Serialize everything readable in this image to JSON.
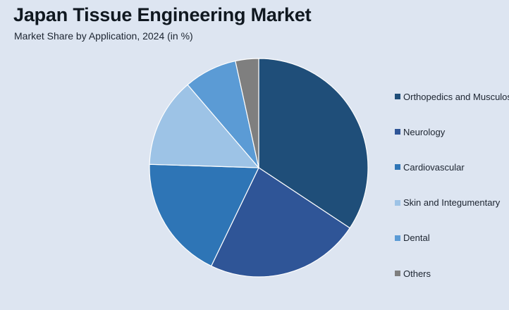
{
  "chart_data": {
    "type": "pie",
    "title": "Japan Tissue Engineering Market",
    "subtitle": "Market Share by Application, 2024 (in %)",
    "legend_position": "right",
    "series": [
      {
        "name": "Orthopedics and Musculoskeletal",
        "value": 35.0,
        "color": "#1f4e79"
      },
      {
        "name": "Neurology",
        "value": 23.3,
        "color": "#2f5597"
      },
      {
        "name": "Cardiovascular",
        "value": 18.7,
        "color": "#2e75b6"
      },
      {
        "name": "Skin and Integumentary",
        "value": 13.5,
        "color": "#9dc3e6"
      },
      {
        "name": "Dental",
        "value": 8.0,
        "color": "#5b9bd5"
      },
      {
        "name": "Others",
        "value": 3.5,
        "color": "#7f7f7f"
      }
    ]
  }
}
